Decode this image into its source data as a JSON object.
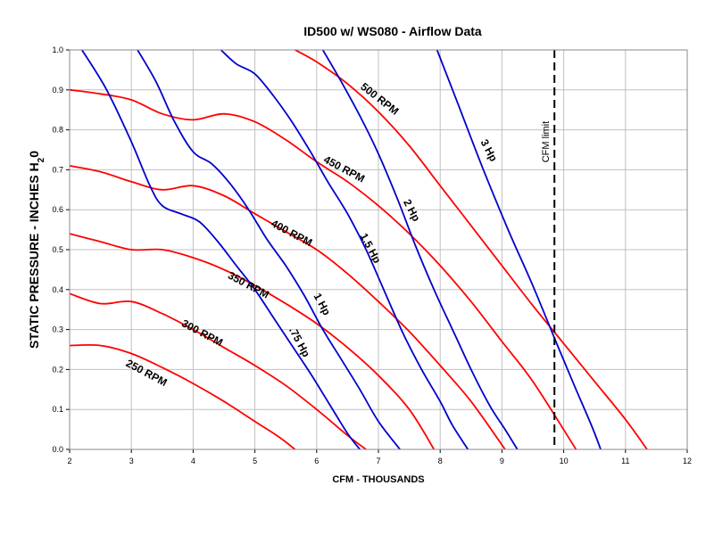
{
  "chart_data": {
    "type": "line",
    "title": "ID500 w/ WS080 - Airflow Data",
    "xlabel": "CFM - THOUSANDS",
    "ylabel_main": "STATIC PRESSURE - INCHES H",
    "ylabel_sub": "2",
    "ylabel_end": "0",
    "xlim": [
      2,
      12
    ],
    "ylim": [
      0,
      1.0
    ],
    "xticks": [
      "2",
      "3",
      "4",
      "5",
      "6",
      "7",
      "8",
      "9",
      "10",
      "11",
      "12"
    ],
    "yticks": [
      "0.0",
      "0.1",
      "0.2",
      "0.3",
      "0.4",
      "0.5",
      "0.6",
      "0.7",
      "0.8",
      "0.9",
      "1.0"
    ],
    "grid": true,
    "colors": {
      "rpm": "#ff0000",
      "hp": "#0000cc",
      "limit": "#000000"
    },
    "rpm_series": [
      {
        "name": "250 RPM",
        "x": [
          2.0,
          2.5,
          3.0,
          3.5,
          4.0,
          4.5,
          5.0,
          5.4,
          5.65
        ],
        "y": [
          0.26,
          0.26,
          0.24,
          0.205,
          0.165,
          0.12,
          0.07,
          0.03,
          0.0
        ]
      },
      {
        "name": "300 RPM",
        "x": [
          2.0,
          2.5,
          3.0,
          3.5,
          4.0,
          4.5,
          5.0,
          5.5,
          6.0,
          6.5,
          6.8
        ],
        "y": [
          0.39,
          0.365,
          0.37,
          0.34,
          0.3,
          0.255,
          0.21,
          0.16,
          0.1,
          0.035,
          0.0
        ]
      },
      {
        "name": "350 RPM",
        "x": [
          2.0,
          2.5,
          3.0,
          3.5,
          4.0,
          4.5,
          5.0,
          5.5,
          6.0,
          6.5,
          7.0,
          7.5,
          7.9
        ],
        "y": [
          0.54,
          0.52,
          0.5,
          0.5,
          0.48,
          0.45,
          0.41,
          0.365,
          0.315,
          0.255,
          0.185,
          0.1,
          0.0
        ]
      },
      {
        "name": "400 RPM",
        "x": [
          2.0,
          2.5,
          3.0,
          3.5,
          4.0,
          4.5,
          5.0,
          5.5,
          6.0,
          6.5,
          7.0,
          7.5,
          8.0,
          8.5,
          9.05
        ],
        "y": [
          0.71,
          0.695,
          0.67,
          0.65,
          0.66,
          0.635,
          0.59,
          0.545,
          0.5,
          0.44,
          0.37,
          0.295,
          0.21,
          0.12,
          0.0
        ]
      },
      {
        "name": "450 RPM",
        "x": [
          2.0,
          2.5,
          3.0,
          3.5,
          4.0,
          4.5,
          5.0,
          5.5,
          6.0,
          6.5,
          7.0,
          7.5,
          8.0,
          8.5,
          9.0,
          9.5,
          10.2
        ],
        "y": [
          0.9,
          0.89,
          0.875,
          0.84,
          0.825,
          0.84,
          0.82,
          0.775,
          0.72,
          0.67,
          0.61,
          0.54,
          0.46,
          0.37,
          0.27,
          0.17,
          0.0
        ]
      },
      {
        "name": "500 RPM",
        "x": [
          5.65,
          6.0,
          6.5,
          7.0,
          7.5,
          8.0,
          8.5,
          9.0,
          9.5,
          10.0,
          10.5,
          11.0,
          11.35
        ],
        "y": [
          1.0,
          0.97,
          0.915,
          0.845,
          0.76,
          0.66,
          0.56,
          0.46,
          0.36,
          0.265,
          0.17,
          0.075,
          0.0
        ]
      }
    ],
    "hp_series": [
      {
        "name": ".75 Hp",
        "x": [
          2.2,
          2.6,
          3.0,
          3.3,
          3.5,
          3.8,
          4.1,
          4.4,
          4.7,
          5.0,
          5.3,
          5.6,
          5.9,
          6.2,
          6.5,
          6.7
        ],
        "y": [
          1.0,
          0.9,
          0.77,
          0.66,
          0.61,
          0.59,
          0.57,
          0.52,
          0.46,
          0.4,
          0.33,
          0.26,
          0.19,
          0.115,
          0.04,
          0.0
        ]
      },
      {
        "name": "1 Hp",
        "x": [
          3.1,
          3.4,
          3.7,
          4.0,
          4.3,
          4.6,
          4.9,
          5.2,
          5.5,
          5.8,
          6.1,
          6.4,
          6.7,
          7.0,
          7.35
        ],
        "y": [
          1.0,
          0.92,
          0.82,
          0.745,
          0.715,
          0.665,
          0.6,
          0.525,
          0.46,
          0.385,
          0.3,
          0.225,
          0.15,
          0.07,
          0.0
        ]
      },
      {
        "name": "1.5 Hp",
        "x": [
          4.45,
          4.7,
          5.0,
          5.3,
          5.6,
          5.9,
          6.2,
          6.5,
          6.8,
          7.1,
          7.4,
          7.7,
          8.0,
          8.2,
          8.45
        ],
        "y": [
          1.0,
          0.965,
          0.94,
          0.885,
          0.82,
          0.745,
          0.665,
          0.59,
          0.5,
          0.395,
          0.29,
          0.2,
          0.12,
          0.06,
          0.0
        ]
      },
      {
        "name": "2 Hp",
        "x": [
          6.1,
          6.4,
          6.7,
          7.0,
          7.3,
          7.6,
          7.9,
          8.2,
          8.5,
          8.8,
          9.05,
          9.25
        ],
        "y": [
          1.0,
          0.92,
          0.835,
          0.74,
          0.63,
          0.51,
          0.4,
          0.3,
          0.2,
          0.11,
          0.05,
          0.0
        ]
      },
      {
        "name": "3 Hp",
        "x": [
          7.95,
          8.3,
          8.7,
          9.1,
          9.5,
          9.9,
          10.2,
          10.45,
          10.6
        ],
        "y": [
          1.0,
          0.86,
          0.7,
          0.55,
          0.41,
          0.26,
          0.15,
          0.06,
          0.0
        ]
      }
    ],
    "labels": [
      {
        "text": "250 RPM",
        "x": 2.9,
        "y": 0.21,
        "angle": 28
      },
      {
        "text": "300 RPM",
        "x": 3.8,
        "y": 0.31,
        "angle": 28
      },
      {
        "text": "350 RPM",
        "x": 4.55,
        "y": 0.43,
        "angle": 28
      },
      {
        "text": "400 RPM",
        "x": 5.25,
        "y": 0.56,
        "angle": 28
      },
      {
        "text": "450 RPM",
        "x": 6.1,
        "y": 0.72,
        "angle": 28
      },
      {
        "text": "500 RPM",
        "x": 6.7,
        "y": 0.905,
        "angle": 38
      },
      {
        "text": ".75 Hp",
        "x": 5.55,
        "y": 0.3,
        "angle": 62
      },
      {
        "text": "1 Hp",
        "x": 5.95,
        "y": 0.385,
        "angle": 62
      },
      {
        "text": "1.5 Hp",
        "x": 6.7,
        "y": 0.535,
        "angle": 62
      },
      {
        "text": "2 Hp",
        "x": 7.4,
        "y": 0.62,
        "angle": 62
      },
      {
        "text": "3 Hp",
        "x": 8.65,
        "y": 0.77,
        "angle": 62
      }
    ],
    "limit": {
      "label": "CFM limit",
      "x": 9.85
    }
  }
}
